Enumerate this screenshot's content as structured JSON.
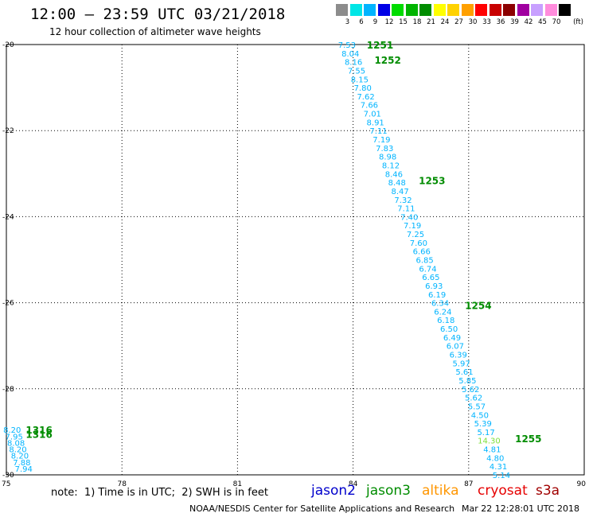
{
  "header": {
    "title": "12:00 – 23:59 UTC 03/21/2018",
    "subtitle": "12 hour collection of altimeter wave heights"
  },
  "legend": {
    "unit_label": "(ft)",
    "bins": [
      {
        "label": "3",
        "color": "#8c8c8c"
      },
      {
        "label": "6",
        "color": "#00e6e6"
      },
      {
        "label": "9",
        "color": "#00b4ff"
      },
      {
        "label": "12",
        "color": "#0000e6"
      },
      {
        "label": "15",
        "color": "#00dc00"
      },
      {
        "label": "18",
        "color": "#00b400"
      },
      {
        "label": "21",
        "color": "#008c00"
      },
      {
        "label": "24",
        "color": "#ffff00"
      },
      {
        "label": "27",
        "color": "#ffd200"
      },
      {
        "label": "30",
        "color": "#ffa000"
      },
      {
        "label": "33",
        "color": "#ff0000"
      },
      {
        "label": "36",
        "color": "#c80000"
      },
      {
        "label": "39",
        "color": "#8c0000"
      },
      {
        "label": "42",
        "color": "#a000a0"
      },
      {
        "label": "45",
        "color": "#c8a0ff"
      },
      {
        "label": "70",
        "color": "#ff8cdc"
      },
      {
        "label": "",
        "color": "#000000"
      }
    ]
  },
  "footer": {
    "note": "note:  1) Time is in UTC;  2) SWH is in feet",
    "missions": [
      {
        "label": "jason2",
        "color": "#0000cc"
      },
      {
        "label": "jason3",
        "color": "#008c00"
      },
      {
        "label": "altika",
        "color": "#ff9600"
      },
      {
        "label": "cryosat",
        "color": "#e60000"
      },
      {
        "label": "s3a",
        "color": "#a00000"
      }
    ],
    "credit": "NOAA/NESDIS Center for Satellite Applications and Research",
    "timestamp": "Mar 22 12:28:01 UTC 2018"
  },
  "chart_data": {
    "type": "scatter",
    "title": "12:00 – 23:59 UTC 03/21/2018",
    "subtitle": "12 hour collection of altimeter wave heights",
    "xlim": [
      75,
      90
    ],
    "ylim": [
      -30,
      -20
    ],
    "x_ticks": [
      75,
      78,
      81,
      84,
      87,
      90
    ],
    "y_ticks": [
      -20,
      -22,
      -24,
      -26,
      -28,
      -30
    ],
    "x_tick_labels": [
      "75",
      "78",
      "81",
      "84",
      "87",
      "90"
    ],
    "y_tick_labels": [
      "-20",
      "-22",
      "-24",
      "-26",
      "-28",
      "-30"
    ],
    "grid": true,
    "value_color": "#00b4ff",
    "value_color_high": "#7fe03c",
    "track_color": "#008c00",
    "tracks": [
      {
        "label": "1251",
        "lon": 84.7,
        "lat": -20.0
      },
      {
        "label": "1252",
        "lon": 84.9,
        "lat": -20.35
      },
      {
        "label": "1253",
        "lon": 86.05,
        "lat": -23.15
      },
      {
        "label": "1254",
        "lon": 87.25,
        "lat": -26.05
      },
      {
        "label": "1255",
        "lon": 88.55,
        "lat": -29.15
      },
      {
        "label": "1316",
        "lon": 75.85,
        "lat": -28.95
      },
      {
        "label": "1316",
        "lon": 75.85,
        "lat": -29.05
      }
    ],
    "points": [
      {
        "lon": 83.84,
        "lat": -20.0,
        "value": "7.53"
      },
      {
        "lon": 83.93,
        "lat": -20.2,
        "value": "8.04"
      },
      {
        "lon": 84.01,
        "lat": -20.4,
        "value": "8.16"
      },
      {
        "lon": 84.09,
        "lat": -20.6,
        "value": "7.55"
      },
      {
        "lon": 84.17,
        "lat": -20.8,
        "value": "8.15"
      },
      {
        "lon": 84.25,
        "lat": -21.0,
        "value": "7.80"
      },
      {
        "lon": 84.33,
        "lat": -21.2,
        "value": "7.62"
      },
      {
        "lon": 84.42,
        "lat": -21.4,
        "value": "7.66"
      },
      {
        "lon": 84.5,
        "lat": -21.6,
        "value": "7.01"
      },
      {
        "lon": 84.58,
        "lat": -21.8,
        "value": "8.91"
      },
      {
        "lon": 84.66,
        "lat": -22.0,
        "value": "7.11"
      },
      {
        "lon": 84.74,
        "lat": -22.2,
        "value": "7.19"
      },
      {
        "lon": 84.82,
        "lat": -22.4,
        "value": "7.83"
      },
      {
        "lon": 84.9,
        "lat": -22.6,
        "value": "8.98"
      },
      {
        "lon": 84.98,
        "lat": -22.8,
        "value": "8.12"
      },
      {
        "lon": 85.06,
        "lat": -23.0,
        "value": "8.46"
      },
      {
        "lon": 85.14,
        "lat": -23.2,
        "value": "8.48"
      },
      {
        "lon": 85.22,
        "lat": -23.4,
        "value": "8.47"
      },
      {
        "lon": 85.3,
        "lat": -23.6,
        "value": "7.32"
      },
      {
        "lon": 85.38,
        "lat": -23.8,
        "value": "7.11"
      },
      {
        "lon": 85.46,
        "lat": -24.0,
        "value": "7.40"
      },
      {
        "lon": 85.54,
        "lat": -24.2,
        "value": "7.19"
      },
      {
        "lon": 85.62,
        "lat": -24.4,
        "value": "7.25"
      },
      {
        "lon": 85.7,
        "lat": -24.6,
        "value": "7.60"
      },
      {
        "lon": 85.78,
        "lat": -24.8,
        "value": "6.66"
      },
      {
        "lon": 85.86,
        "lat": -25.0,
        "value": "6.85"
      },
      {
        "lon": 85.94,
        "lat": -25.2,
        "value": "6.74"
      },
      {
        "lon": 86.02,
        "lat": -25.4,
        "value": "6.65"
      },
      {
        "lon": 86.1,
        "lat": -25.6,
        "value": "6.93"
      },
      {
        "lon": 86.18,
        "lat": -25.8,
        "value": "6.19"
      },
      {
        "lon": 86.26,
        "lat": -26.0,
        "value": "6.34"
      },
      {
        "lon": 86.33,
        "lat": -26.2,
        "value": "6.24"
      },
      {
        "lon": 86.41,
        "lat": -26.4,
        "value": "6.18"
      },
      {
        "lon": 86.49,
        "lat": -26.6,
        "value": "6.50"
      },
      {
        "lon": 86.57,
        "lat": -26.8,
        "value": "6.49"
      },
      {
        "lon": 86.65,
        "lat": -27.0,
        "value": "6.07"
      },
      {
        "lon": 86.73,
        "lat": -27.2,
        "value": "6.39"
      },
      {
        "lon": 86.81,
        "lat": -27.4,
        "value": "5.97"
      },
      {
        "lon": 86.89,
        "lat": -27.6,
        "value": "5.61"
      },
      {
        "lon": 86.97,
        "lat": -27.8,
        "value": "5.85"
      },
      {
        "lon": 87.05,
        "lat": -28.0,
        "value": "5.62"
      },
      {
        "lon": 87.13,
        "lat": -28.2,
        "value": "5.62"
      },
      {
        "lon": 87.21,
        "lat": -28.4,
        "value": "5.57"
      },
      {
        "lon": 87.29,
        "lat": -28.6,
        "value": "4.50"
      },
      {
        "lon": 87.37,
        "lat": -28.8,
        "value": "5.39"
      },
      {
        "lon": 87.45,
        "lat": -29.0,
        "value": "5.17"
      },
      {
        "lon": 87.53,
        "lat": -29.2,
        "value": "14.30"
      },
      {
        "lon": 87.61,
        "lat": -29.4,
        "value": "4.81"
      },
      {
        "lon": 87.69,
        "lat": -29.6,
        "value": "4.80"
      },
      {
        "lon": 87.77,
        "lat": -29.8,
        "value": "4.31"
      },
      {
        "lon": 87.85,
        "lat": -30.0,
        "value": "5.14"
      },
      {
        "lon": 75.15,
        "lat": -28.95,
        "value": "8.20"
      },
      {
        "lon": 75.2,
        "lat": -29.1,
        "value": "7.95"
      },
      {
        "lon": 75.25,
        "lat": -29.25,
        "value": "8.08"
      },
      {
        "lon": 75.3,
        "lat": -29.4,
        "value": "8.20"
      },
      {
        "lon": 75.35,
        "lat": -29.55,
        "value": "8.20"
      },
      {
        "lon": 75.4,
        "lat": -29.7,
        "value": "7.88"
      },
      {
        "lon": 75.45,
        "lat": -29.85,
        "value": "7.94"
      }
    ]
  }
}
